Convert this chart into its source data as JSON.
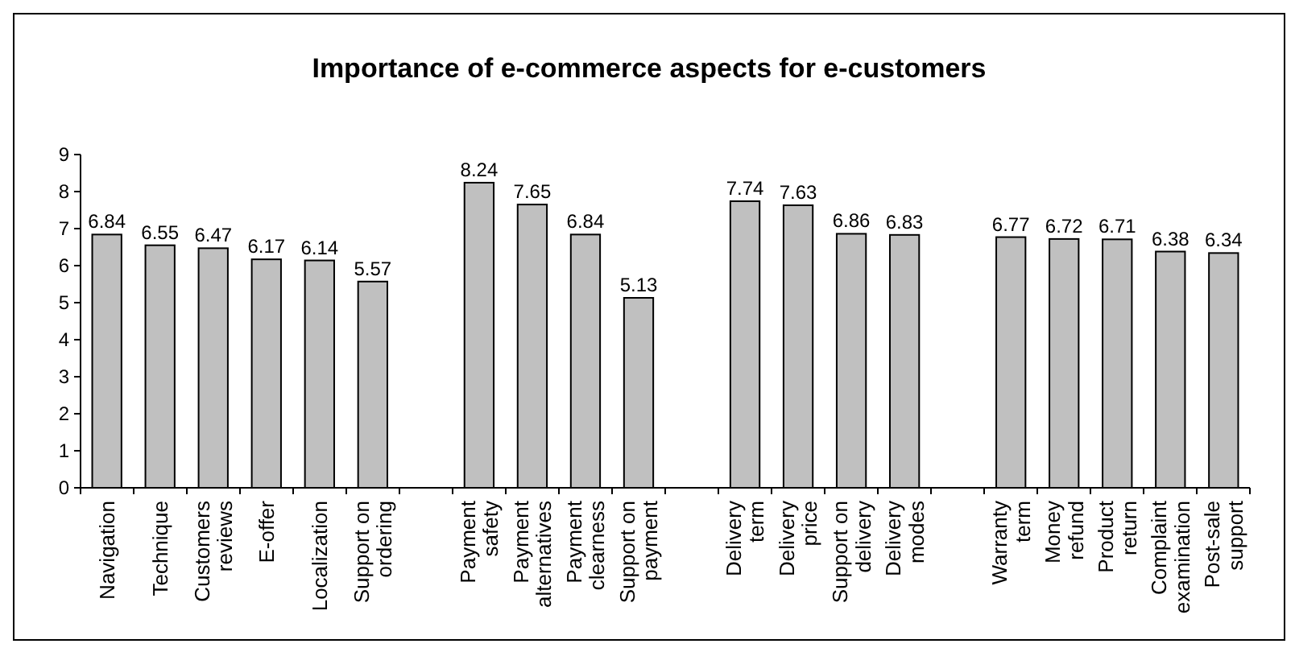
{
  "chart_data": {
    "type": "bar",
    "title": "Importance of e-commerce aspects for e-customers",
    "categories": [
      "Navigation",
      "Technique",
      "Customers reviews",
      "E-offer",
      "Localization",
      "Support on ordering",
      null,
      "Payment safety",
      "Payment alternatives",
      "Payment clearness",
      "Support on payment",
      null,
      "Delivery term",
      "Delivery price",
      "Support on delivery",
      "Delivery modes",
      null,
      "Warranty term",
      "Money refund",
      "Product return",
      "Complaint examination",
      "Post-sale support"
    ],
    "values": [
      6.84,
      6.55,
      6.47,
      6.17,
      6.14,
      5.57,
      null,
      8.24,
      7.65,
      6.84,
      5.13,
      null,
      7.74,
      7.63,
      6.86,
      6.83,
      null,
      6.77,
      6.72,
      6.71,
      6.38,
      6.34
    ],
    "color": "#c0c0c0",
    "ylim": [
      0,
      9
    ],
    "yticks": [
      0,
      1,
      2,
      3,
      4,
      5,
      6,
      7,
      8,
      9
    ],
    "data_labels": true
  }
}
